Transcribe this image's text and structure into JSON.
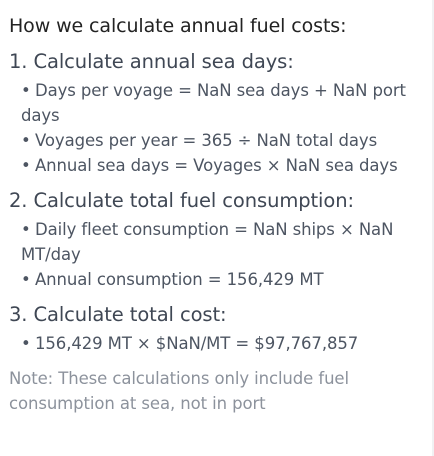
{
  "title": "How we calculate annual fuel costs:",
  "sections": [
    {
      "heading": "1. Calculate annual sea days:",
      "bullets": [
        "Days per voyage = NaN sea days + NaN port days",
        "Voyages per year = 365 ÷ NaN total days",
        "Annual sea days = Voyages × NaN sea days"
      ]
    },
    {
      "heading": "2. Calculate total fuel consumption:",
      "bullets": [
        "Daily fleet consumption = NaN ships × NaN MT/day",
        "Annual consumption = 156,429 MT"
      ]
    },
    {
      "heading": "3. Calculate total cost:",
      "bullets": [
        "156,429 MT × $NaN/MT = $97,767,857"
      ]
    }
  ],
  "bullet_glyph": "•",
  "note": "Note: These calculations only include fuel consumption at sea, not in port"
}
